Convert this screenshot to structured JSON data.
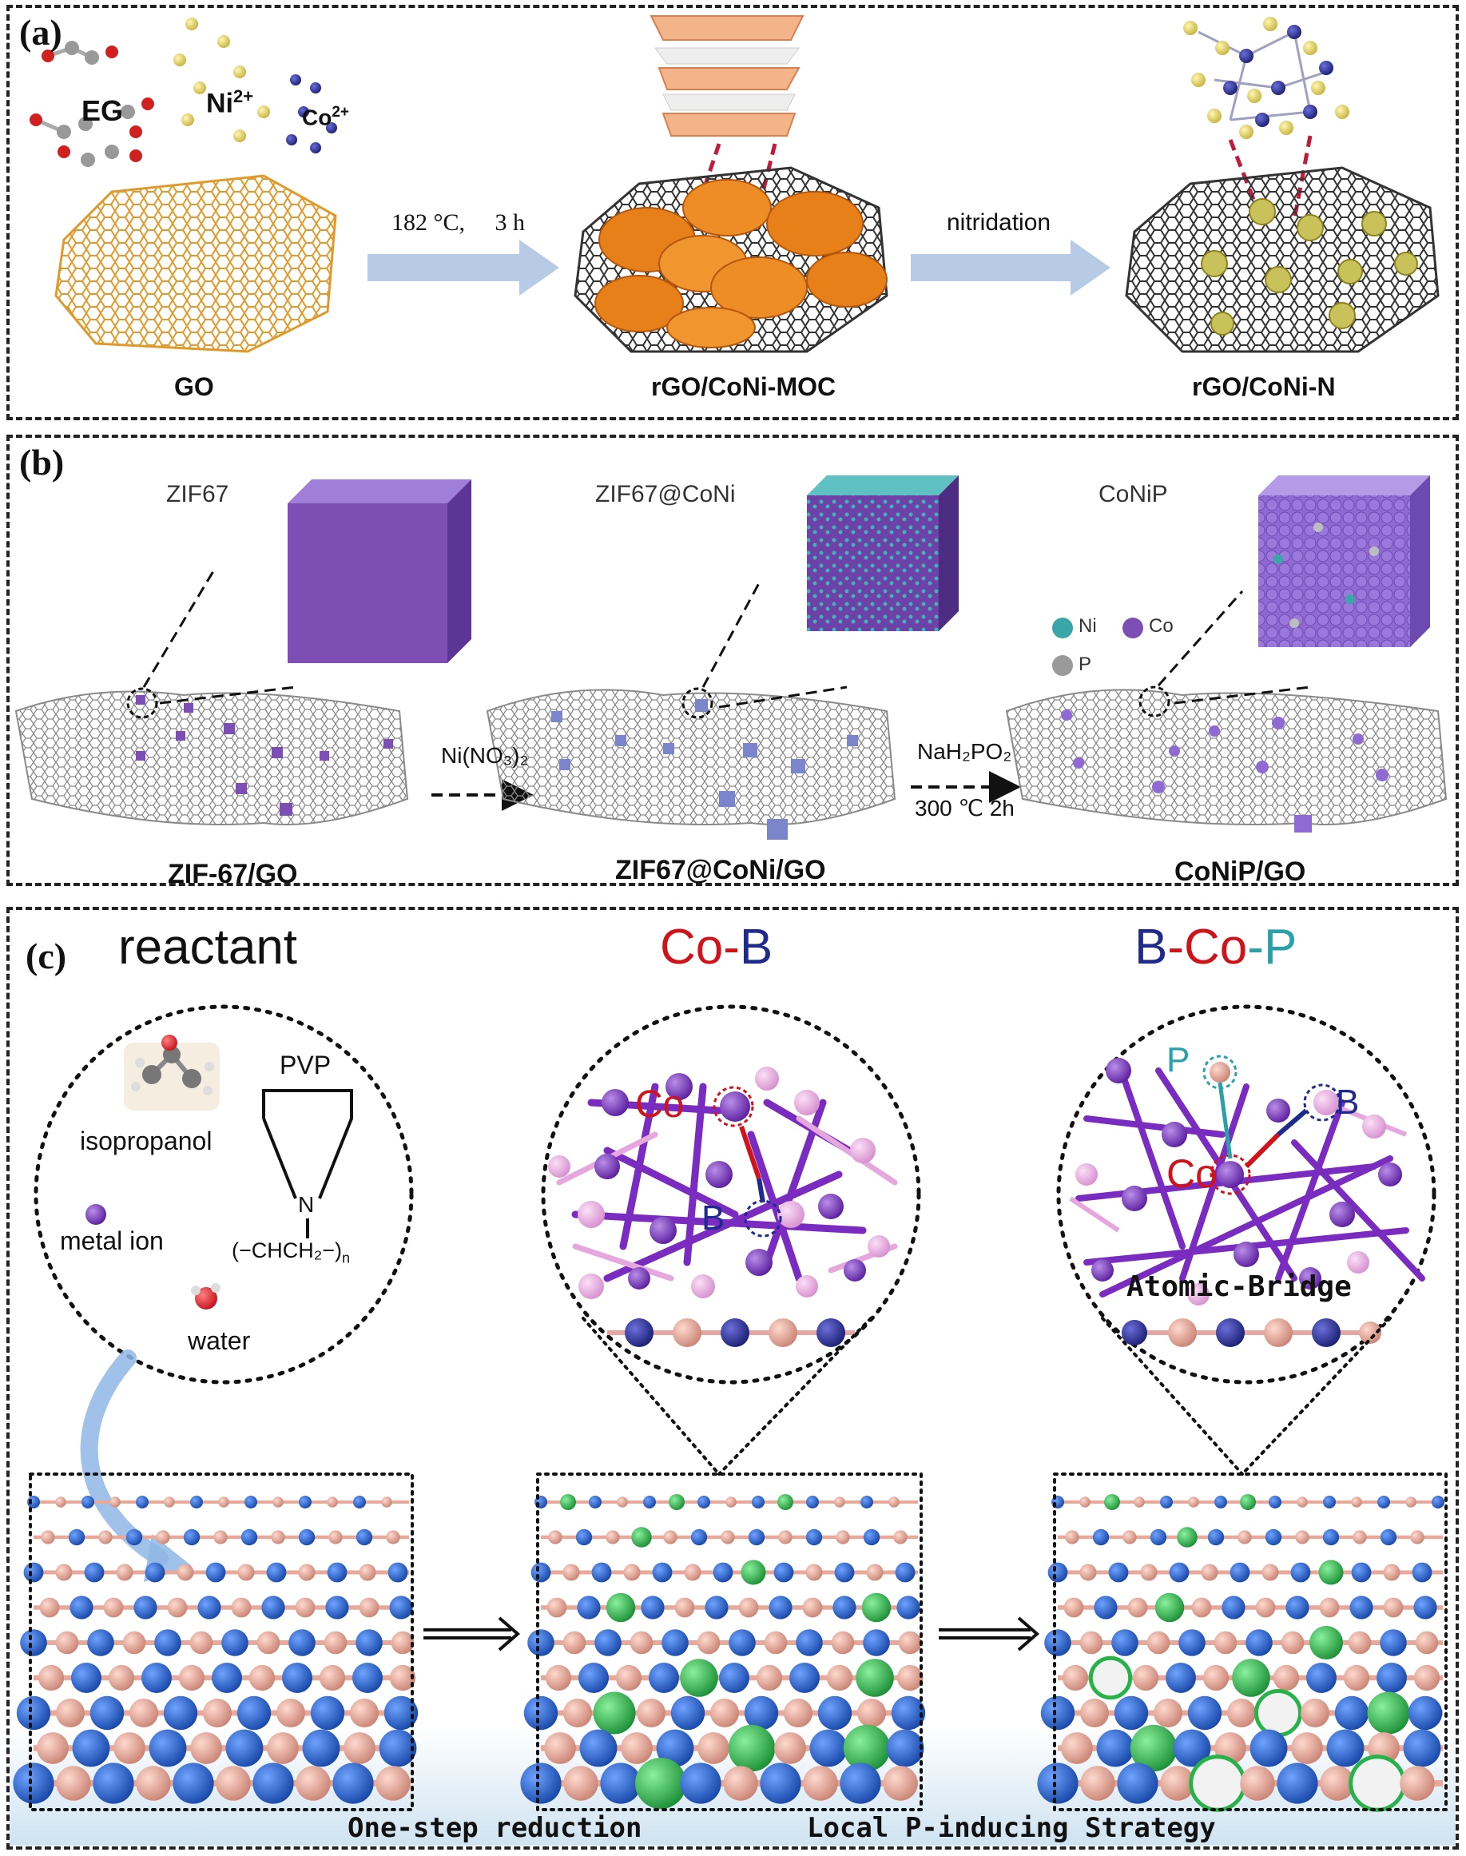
{
  "panel_a": {
    "label": "(a)",
    "reagents": {
      "eg": "EG",
      "ni": "Ni",
      "ni_charge": "2+",
      "co": "Co",
      "co_charge": "2+"
    },
    "step1": "182 °C,  3 h",
    "step2": "nitridation",
    "stages": [
      "GO",
      "rGO/CoNi-MOC",
      "rGO/CoNi-N"
    ]
  },
  "panel_b": {
    "label": "(b)",
    "insets": [
      "ZIF67",
      "ZIF67@CoNi",
      "CoNiP"
    ],
    "legend": {
      "ni": "Ni",
      "co": "Co",
      "p": "P"
    },
    "step1": "Ni(NO₃)₂",
    "step2_reagent": "NaH₂PO₂",
    "step2_cond": "300 ℃ 2h",
    "stages": [
      "ZIF-67/GO",
      "ZIF67@CoNi/GO",
      "CoNiP/GO"
    ]
  },
  "panel_c": {
    "label": "(c)",
    "titles": {
      "reactant": "reactant",
      "cob_co": "Co",
      "cob_dash": "-",
      "cob_b": "B",
      "bcop_b": "B",
      "bcop_dash1": "-",
      "bcop_co": "Co",
      "bcop_dash2": "-",
      "bcop_p": "P"
    },
    "reactant_labels": {
      "isopropanol": "isopropanol",
      "pvp": "PVP",
      "metal_ion": "metal ion",
      "water": "water",
      "n_atom": "N",
      "polymer": "(−CHCH₂−)",
      "subscript_n": "n"
    },
    "cob_labels": {
      "co": "Co",
      "b": "B"
    },
    "bcop_labels": {
      "p": "P",
      "co": "Co",
      "b": "B",
      "bridge": "Atomic-Bridge"
    },
    "steps": [
      "One-step reduction",
      "Local P-inducing Strategy"
    ]
  },
  "colors": {
    "go": "#e09a2c",
    "graphene": "#333333",
    "moc": "#e8801a",
    "arrow": "#b8cbe6",
    "ni_ion": "#e3d66b",
    "co_ion": "#2c2f8f",
    "zif": "#7d4fb5",
    "ni_dot": "#3aa6a8",
    "p_dot": "#9a9a9a",
    "red": "#d0121b",
    "navy": "#1e2a8c",
    "teal": "#2aa0a8",
    "purple": "#7a2cc0",
    "pink": "#e6a6de",
    "blue_atom": "#2366d1",
    "salmon": "#e9a99a",
    "green": "#28b34a"
  }
}
